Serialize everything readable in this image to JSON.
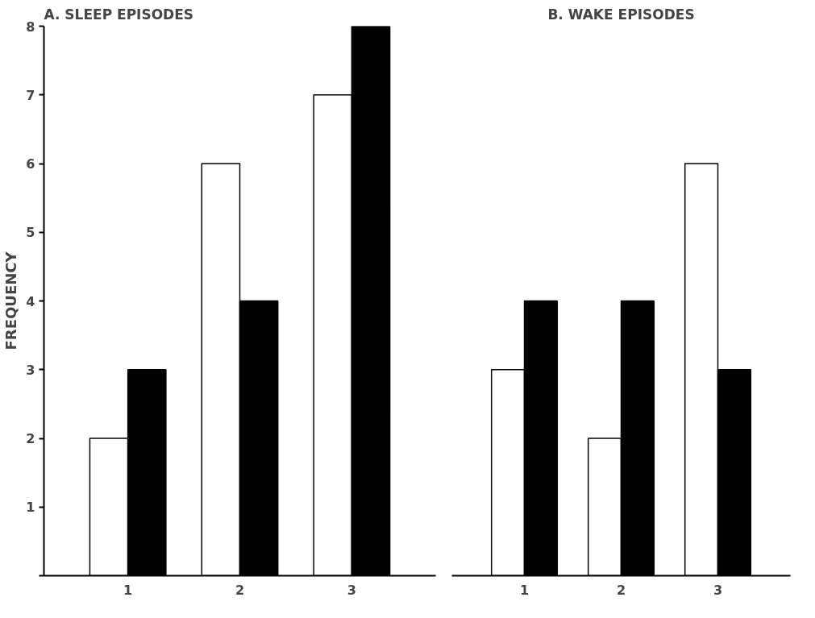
{
  "chart_data": [
    {
      "type": "bar",
      "title": "A. SLEEP EPISODES",
      "ylabel": "FREQUENCY",
      "categories": [
        "1",
        "2",
        "3"
      ],
      "series": [
        {
          "color": "#ffffff",
          "values": [
            2,
            6,
            7
          ]
        },
        {
          "color": "#000000",
          "values": [
            3,
            4,
            8
          ]
        }
      ],
      "ylim": [
        0,
        8
      ],
      "yticks": [
        {
          "value": 0,
          "label": null
        },
        1,
        2,
        3,
        4,
        5,
        6,
        7,
        8
      ],
      "grid": false
    },
    {
      "type": "bar",
      "title": "B. WAKE EPISODES",
      "categories": [
        "1",
        "2",
        "3"
      ],
      "series": [
        {
          "color": "#ffffff",
          "values": [
            3,
            2,
            6
          ]
        },
        {
          "color": "#000000",
          "values": [
            4,
            4,
            3
          ]
        }
      ],
      "ylim": [
        0,
        8
      ],
      "yticks": [
        {
          "value": 0,
          "label": null
        },
        1,
        2,
        3,
        4,
        5,
        6,
        7,
        8
      ],
      "grid": false,
      "tick_labels": "x"
    }
  ]
}
